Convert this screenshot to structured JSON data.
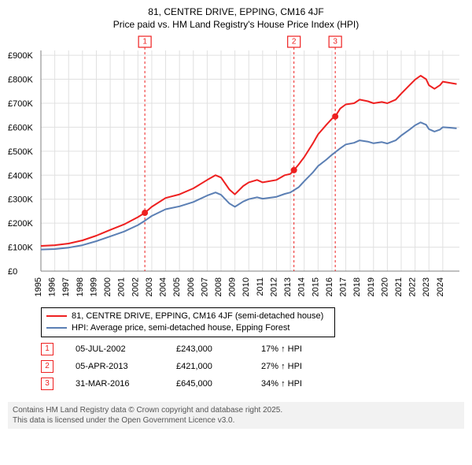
{
  "title_line1": "81, CENTRE DRIVE, EPPING, CM16 4JF",
  "title_line2": "Price paid vs. HM Land Registry's House Price Index (HPI)",
  "chart": {
    "type": "line",
    "background_color": "#ffffff",
    "grid_color": "#e0e0e0",
    "axis_color": "#808080",
    "x_years": [
      1995,
      1996,
      1997,
      1998,
      1999,
      2000,
      2001,
      2002,
      2003,
      2004,
      2005,
      2006,
      2007,
      2008,
      2009,
      2010,
      2011,
      2012,
      2013,
      2014,
      2015,
      2016,
      2017,
      2018,
      2019,
      2020,
      2021,
      2022,
      2023,
      2024
    ],
    "y_ticks": [
      0,
      100000,
      200000,
      300000,
      400000,
      500000,
      600000,
      700000,
      800000,
      900000
    ],
    "y_labels": [
      "£0",
      "£100K",
      "£200K",
      "£300K",
      "£400K",
      "£500K",
      "£600K",
      "£700K",
      "£800K",
      "£900K"
    ],
    "ylim": [
      0,
      920000
    ],
    "xlim": [
      1995,
      2025.2
    ],
    "label_fontsize": 11,
    "series": [
      {
        "name": "property",
        "color": "#ee2020",
        "line_width": 2,
        "label": "81, CENTRE DRIVE, EPPING, CM16 4JF (semi-detached house)",
        "points": [
          [
            1995,
            105000
          ],
          [
            1996,
            108000
          ],
          [
            1997,
            115000
          ],
          [
            1998,
            128000
          ],
          [
            1999,
            148000
          ],
          [
            2000,
            172000
          ],
          [
            2001,
            195000
          ],
          [
            2002,
            225000
          ],
          [
            2002.5,
            243000
          ],
          [
            2003,
            268000
          ],
          [
            2004,
            305000
          ],
          [
            2005,
            320000
          ],
          [
            2006,
            345000
          ],
          [
            2007,
            380000
          ],
          [
            2007.6,
            400000
          ],
          [
            2008,
            390000
          ],
          [
            2008.6,
            340000
          ],
          [
            2009,
            320000
          ],
          [
            2009.6,
            355000
          ],
          [
            2010,
            370000
          ],
          [
            2010.6,
            380000
          ],
          [
            2011,
            370000
          ],
          [
            2012,
            380000
          ],
          [
            2012.6,
            400000
          ],
          [
            2013,
            405000
          ],
          [
            2013.26,
            421000
          ],
          [
            2013.6,
            445000
          ],
          [
            2014,
            475000
          ],
          [
            2014.6,
            530000
          ],
          [
            2015,
            570000
          ],
          [
            2015.6,
            610000
          ],
          [
            2016,
            635000
          ],
          [
            2016.24,
            645000
          ],
          [
            2016.6,
            678000
          ],
          [
            2017,
            695000
          ],
          [
            2017.6,
            700000
          ],
          [
            2018,
            715000
          ],
          [
            2018.6,
            708000
          ],
          [
            2019,
            700000
          ],
          [
            2019.6,
            705000
          ],
          [
            2020,
            700000
          ],
          [
            2020.6,
            715000
          ],
          [
            2021,
            740000
          ],
          [
            2021.6,
            775000
          ],
          [
            2022,
            798000
          ],
          [
            2022.4,
            815000
          ],
          [
            2022.8,
            800000
          ],
          [
            2023,
            775000
          ],
          [
            2023.4,
            760000
          ],
          [
            2023.8,
            775000
          ],
          [
            2024,
            790000
          ],
          [
            2024.5,
            785000
          ],
          [
            2025,
            780000
          ]
        ]
      },
      {
        "name": "hpi",
        "color": "#5b7fb4",
        "line_width": 2,
        "label": "HPI: Average price, semi-detached house, Epping Forest",
        "points": [
          [
            1995,
            90000
          ],
          [
            1996,
            92000
          ],
          [
            1997,
            98000
          ],
          [
            1998,
            108000
          ],
          [
            1999,
            125000
          ],
          [
            2000,
            145000
          ],
          [
            2001,
            165000
          ],
          [
            2002,
            192000
          ],
          [
            2002.5,
            210000
          ],
          [
            2003,
            230000
          ],
          [
            2004,
            258000
          ],
          [
            2005,
            270000
          ],
          [
            2006,
            288000
          ],
          [
            2007,
            315000
          ],
          [
            2007.6,
            328000
          ],
          [
            2008,
            318000
          ],
          [
            2008.6,
            282000
          ],
          [
            2009,
            268000
          ],
          [
            2009.6,
            290000
          ],
          [
            2010,
            300000
          ],
          [
            2010.6,
            308000
          ],
          [
            2011,
            302000
          ],
          [
            2012,
            310000
          ],
          [
            2012.6,
            322000
          ],
          [
            2013,
            328000
          ],
          [
            2013.6,
            350000
          ],
          [
            2014,
            375000
          ],
          [
            2014.6,
            410000
          ],
          [
            2015,
            438000
          ],
          [
            2015.6,
            465000
          ],
          [
            2016,
            485000
          ],
          [
            2016.6,
            512000
          ],
          [
            2017,
            528000
          ],
          [
            2017.6,
            535000
          ],
          [
            2018,
            545000
          ],
          [
            2018.6,
            540000
          ],
          [
            2019,
            533000
          ],
          [
            2019.6,
            538000
          ],
          [
            2020,
            532000
          ],
          [
            2020.6,
            545000
          ],
          [
            2021,
            565000
          ],
          [
            2021.6,
            590000
          ],
          [
            2022,
            608000
          ],
          [
            2022.4,
            620000
          ],
          [
            2022.8,
            610000
          ],
          [
            2023,
            592000
          ],
          [
            2023.4,
            582000
          ],
          [
            2023.8,
            590000
          ],
          [
            2024,
            600000
          ],
          [
            2024.5,
            598000
          ],
          [
            2025,
            595000
          ]
        ]
      }
    ],
    "sale_markers": [
      {
        "n": "1",
        "x": 2002.5,
        "y": 243000
      },
      {
        "n": "2",
        "x": 2013.26,
        "y": 421000
      },
      {
        "n": "3",
        "x": 2016.24,
        "y": 645000
      }
    ],
    "marker_line_color": "#ee2020",
    "marker_dot_color": "#ee2020",
    "marker_dot_radius": 4
  },
  "legend": {
    "series1_color": "#ee2020",
    "series1_label": "81, CENTRE DRIVE, EPPING, CM16 4JF (semi-detached house)",
    "series2_color": "#5b7fb4",
    "series2_label": "HPI: Average price, semi-detached house, Epping Forest"
  },
  "sales": [
    {
      "n": "1",
      "date": "05-JUL-2002",
      "price": "£243,000",
      "diff": "17% ↑ HPI"
    },
    {
      "n": "2",
      "date": "05-APR-2013",
      "price": "£421,000",
      "diff": "27% ↑ HPI"
    },
    {
      "n": "3",
      "date": "31-MAR-2016",
      "price": "£645,000",
      "diff": "34% ↑ HPI"
    }
  ],
  "footer_line1": "Contains HM Land Registry data © Crown copyright and database right 2025.",
  "footer_line2": "This data is licensed under the Open Government Licence v3.0."
}
